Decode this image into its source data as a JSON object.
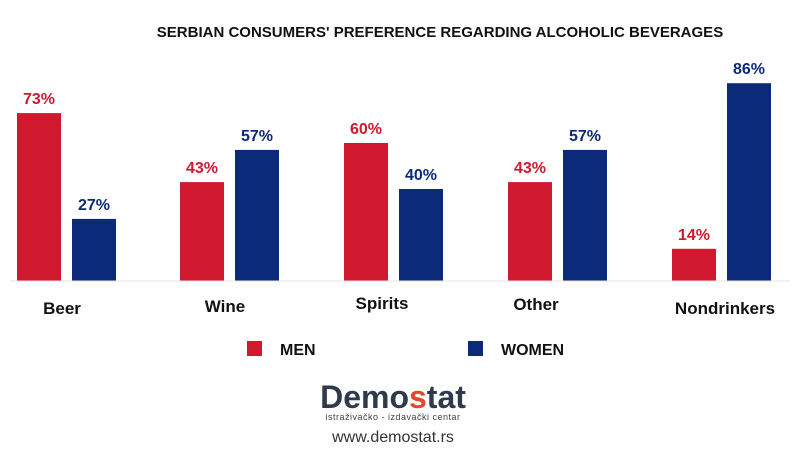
{
  "colors": {
    "men": "#d0182f",
    "women": "#0b2a7a",
    "logo_dark": "#2f3a4a",
    "logo_accent": "#e04a2a"
  },
  "logo": {
    "name_part1": "Demo",
    "name_accent": "s",
    "name_part2": "tat",
    "subtitle": "istraživačko - izdavački centar",
    "url": "www.demostat.rs"
  },
  "chart_data": {
    "type": "bar",
    "title": "SERBIAN CONSUMERS' PREFERENCE REGARDING ALCOHOLIC BEVERAGES",
    "categories": [
      "Beer",
      "Wine",
      "Spirits",
      "Other",
      "Nondrinkers"
    ],
    "series": [
      {
        "name": "MEN",
        "values": [
          73,
          43,
          60,
          43,
          14
        ],
        "labels": [
          "73%",
          "43%",
          "60%",
          "43%",
          "14%"
        ]
      },
      {
        "name": "WOMEN",
        "values": [
          27,
          57,
          40,
          57,
          86
        ],
        "labels": [
          "27%",
          "57%",
          "40%",
          "57%",
          "86%"
        ]
      }
    ],
    "ylim": [
      0,
      100
    ],
    "grid": false,
    "legend": "bottom"
  }
}
